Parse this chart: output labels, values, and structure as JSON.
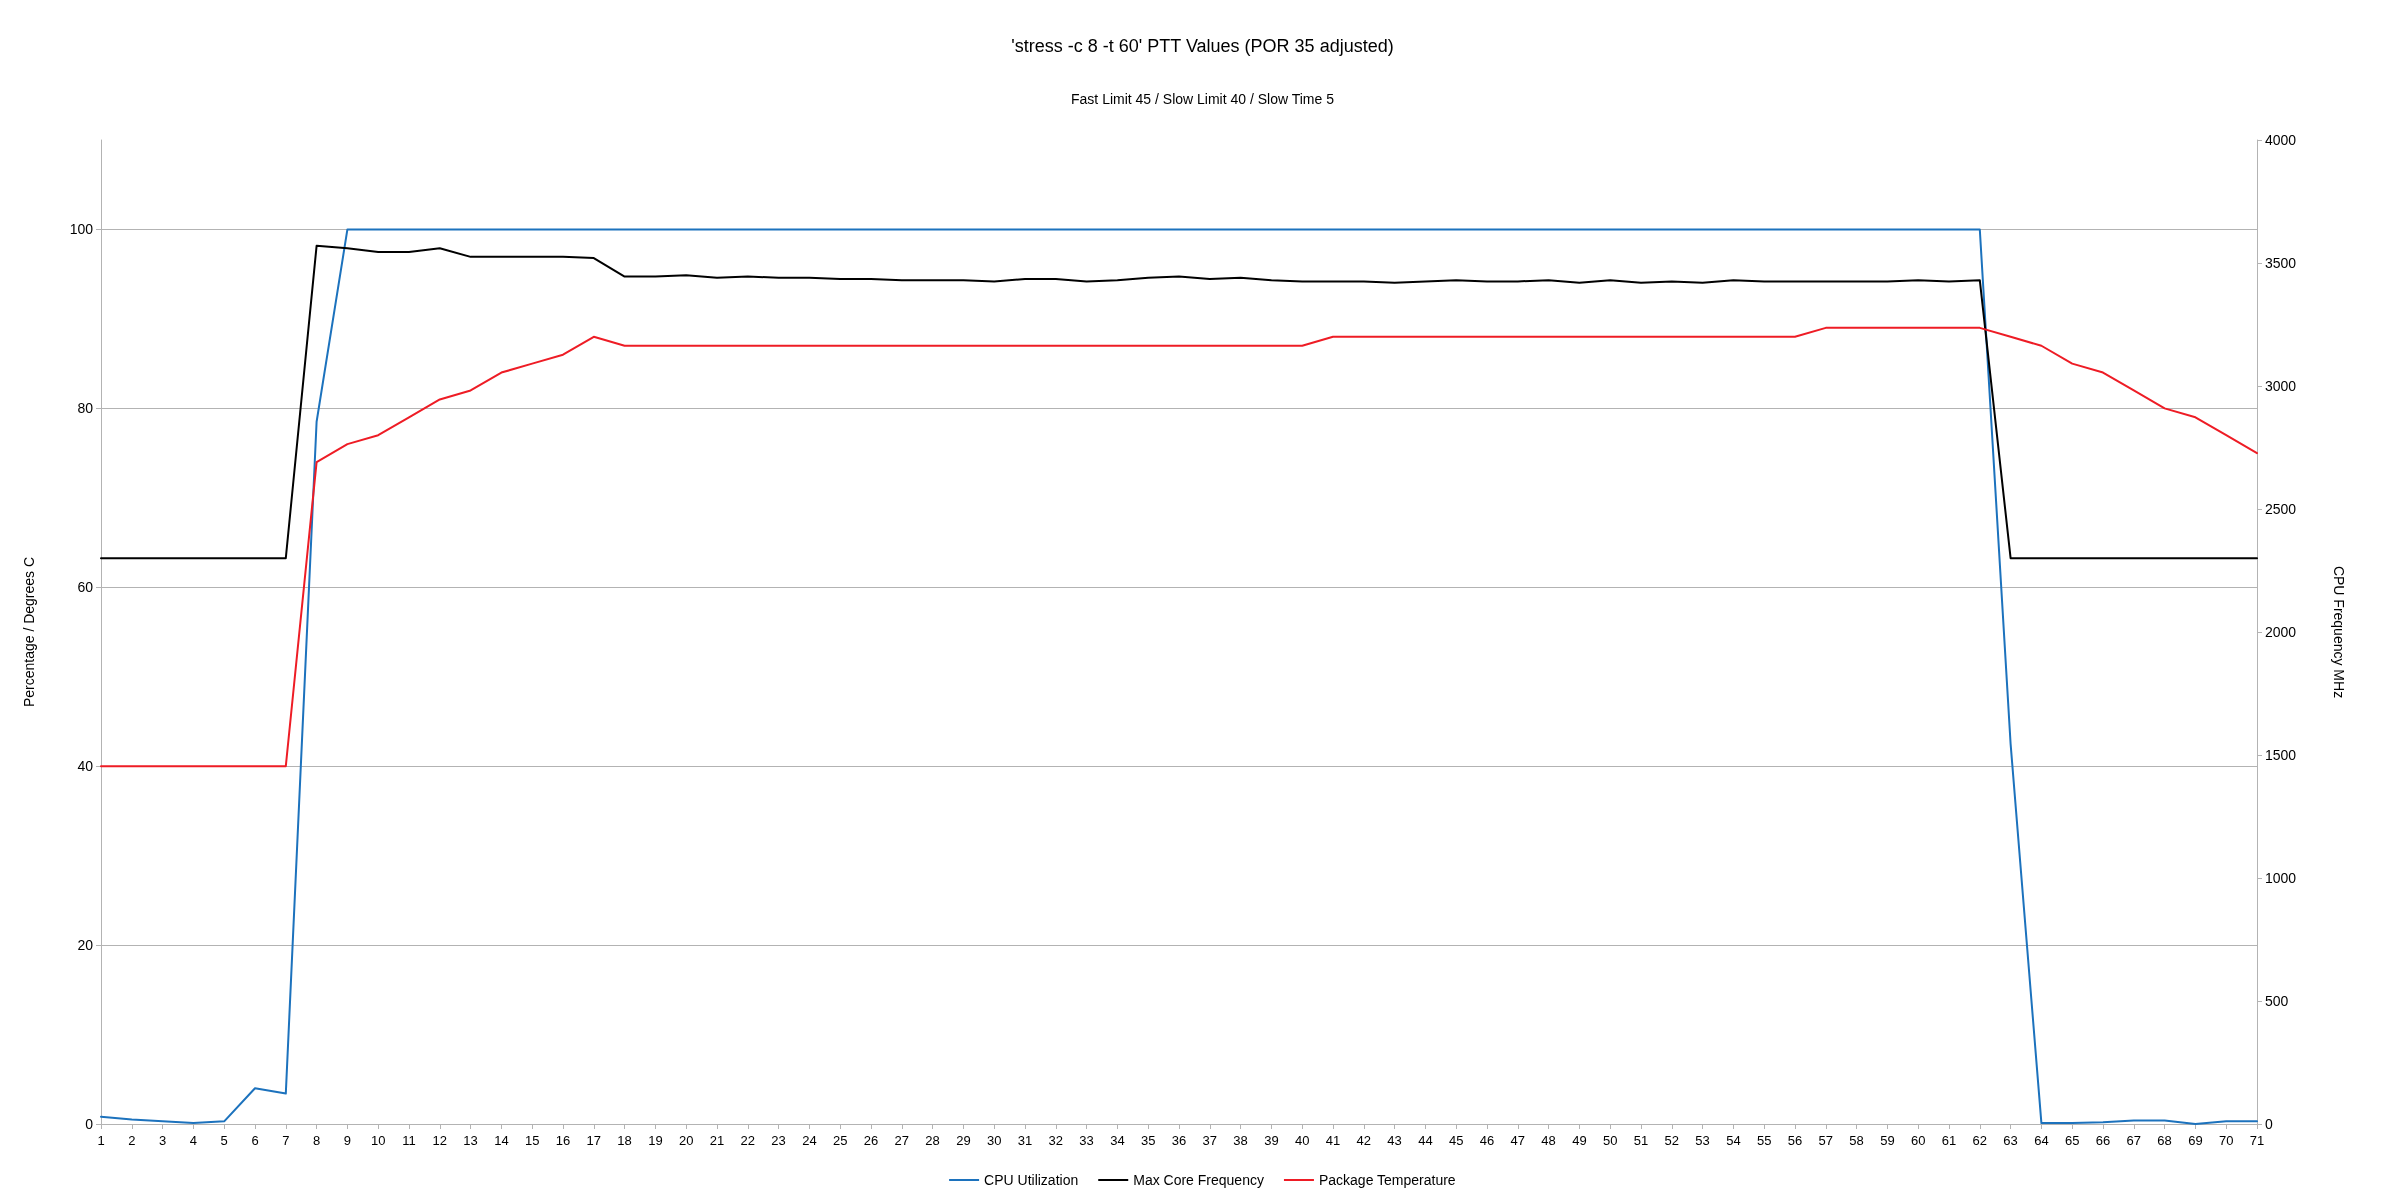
{
  "chart_data": {
    "type": "line",
    "title": "'stress -c 8 -t 60' PTT Values (POR 35 adjusted)",
    "subtitle": "Fast Limit 45 / Slow Limit 40 / Slow Time 5",
    "ylabel": "Percentage / Degrees C",
    "y2label": "CPU Frequency MHz",
    "x": [
      1,
      2,
      3,
      4,
      5,
      6,
      7,
      8,
      9,
      10,
      11,
      12,
      13,
      14,
      15,
      16,
      17,
      18,
      19,
      20,
      21,
      22,
      23,
      24,
      25,
      26,
      27,
      28,
      29,
      30,
      31,
      32,
      33,
      34,
      35,
      36,
      37,
      38,
      39,
      40,
      41,
      42,
      43,
      44,
      45,
      46,
      47,
      48,
      49,
      50,
      51,
      52,
      53,
      54,
      55,
      56,
      57,
      58,
      59,
      60,
      61,
      62,
      63,
      64,
      65,
      66,
      67,
      68,
      69,
      70,
      71
    ],
    "xlim": [
      1,
      71
    ],
    "xticks": [
      1,
      2,
      3,
      4,
      5,
      6,
      7,
      8,
      9,
      10,
      11,
      12,
      13,
      14,
      15,
      16,
      17,
      18,
      19,
      20,
      21,
      22,
      23,
      24,
      25,
      26,
      27,
      28,
      29,
      30,
      31,
      32,
      33,
      34,
      35,
      36,
      37,
      38,
      39,
      40,
      41,
      42,
      43,
      44,
      45,
      46,
      47,
      48,
      49,
      50,
      51,
      52,
      53,
      54,
      55,
      56,
      57,
      58,
      59,
      60,
      61,
      62,
      63,
      64,
      65,
      66,
      67,
      68,
      69,
      70,
      71
    ],
    "ylim": [
      0,
      110
    ],
    "yticks": [
      0,
      20,
      40,
      60,
      80,
      100
    ],
    "y2lim": [
      0,
      4000
    ],
    "y2ticks": [
      0,
      500,
      1000,
      1500,
      2000,
      2500,
      3000,
      3500,
      4000
    ],
    "grid": "y",
    "legend": "bottom",
    "marker": "none",
    "line_style": "solid",
    "series": [
      {
        "name": "CPU Utilization",
        "color": "#1c72bd",
        "values": [
          0.8,
          0.5,
          0.3,
          0.1,
          0.3,
          4,
          3.4,
          78.5,
          100,
          100,
          100,
          100,
          100,
          100,
          100,
          100,
          100,
          100,
          100,
          100,
          100,
          100,
          100,
          100,
          100,
          100,
          100,
          100,
          100,
          100,
          100,
          100,
          100,
          100,
          100,
          100,
          100,
          100,
          100,
          100,
          100,
          100,
          100,
          100,
          100,
          100,
          100,
          100,
          100,
          100,
          100,
          100,
          100,
          100,
          100,
          100,
          100,
          100,
          100,
          100,
          100,
          100,
          42.5,
          0.1,
          0.1,
          0.2,
          0.4,
          0.4,
          0,
          0.3,
          0.3
        ]
      },
      {
        "name": "Max Core Frequency",
        "color": "#000000",
        "axis": "y2",
        "values": [
          2300,
          2300,
          2300,
          2300,
          2300,
          2300,
          2300,
          3570,
          3560,
          3545,
          3545,
          3560,
          3525,
          3525,
          3525,
          3525,
          3520,
          3445,
          3445,
          3450,
          3440,
          3445,
          3440,
          3440,
          3435,
          3435,
          3430,
          3430,
          3430,
          3425,
          3435,
          3435,
          3425,
          3430,
          3440,
          3445,
          3435,
          3440,
          3430,
          3425,
          3425,
          3425,
          3420,
          3425,
          3430,
          3425,
          3425,
          3430,
          3420,
          3430,
          3420,
          3425,
          3420,
          3430,
          3425,
          3425,
          3425,
          3425,
          3425,
          3430,
          3425,
          3430,
          2300,
          2300,
          2300,
          2300,
          2300,
          2300,
          2300,
          2300,
          2300
        ]
      },
      {
        "name": "Package Temperature",
        "color": "#ee1c25",
        "values": [
          40,
          40,
          40,
          40,
          40,
          40,
          40,
          74,
          76,
          77,
          79,
          81,
          82,
          84,
          85,
          86,
          88,
          87,
          87,
          87,
          87,
          87,
          87,
          87,
          87,
          87,
          87,
          87,
          87,
          87,
          87,
          87,
          87,
          87,
          87,
          87,
          87,
          87,
          87,
          87,
          88,
          88,
          88,
          88,
          88,
          88,
          88,
          88,
          88,
          88,
          88,
          88,
          88,
          88,
          88,
          88,
          89,
          89,
          89,
          89,
          89,
          89,
          88,
          87,
          85,
          84,
          82,
          80,
          79,
          77,
          75
        ]
      }
    ]
  }
}
